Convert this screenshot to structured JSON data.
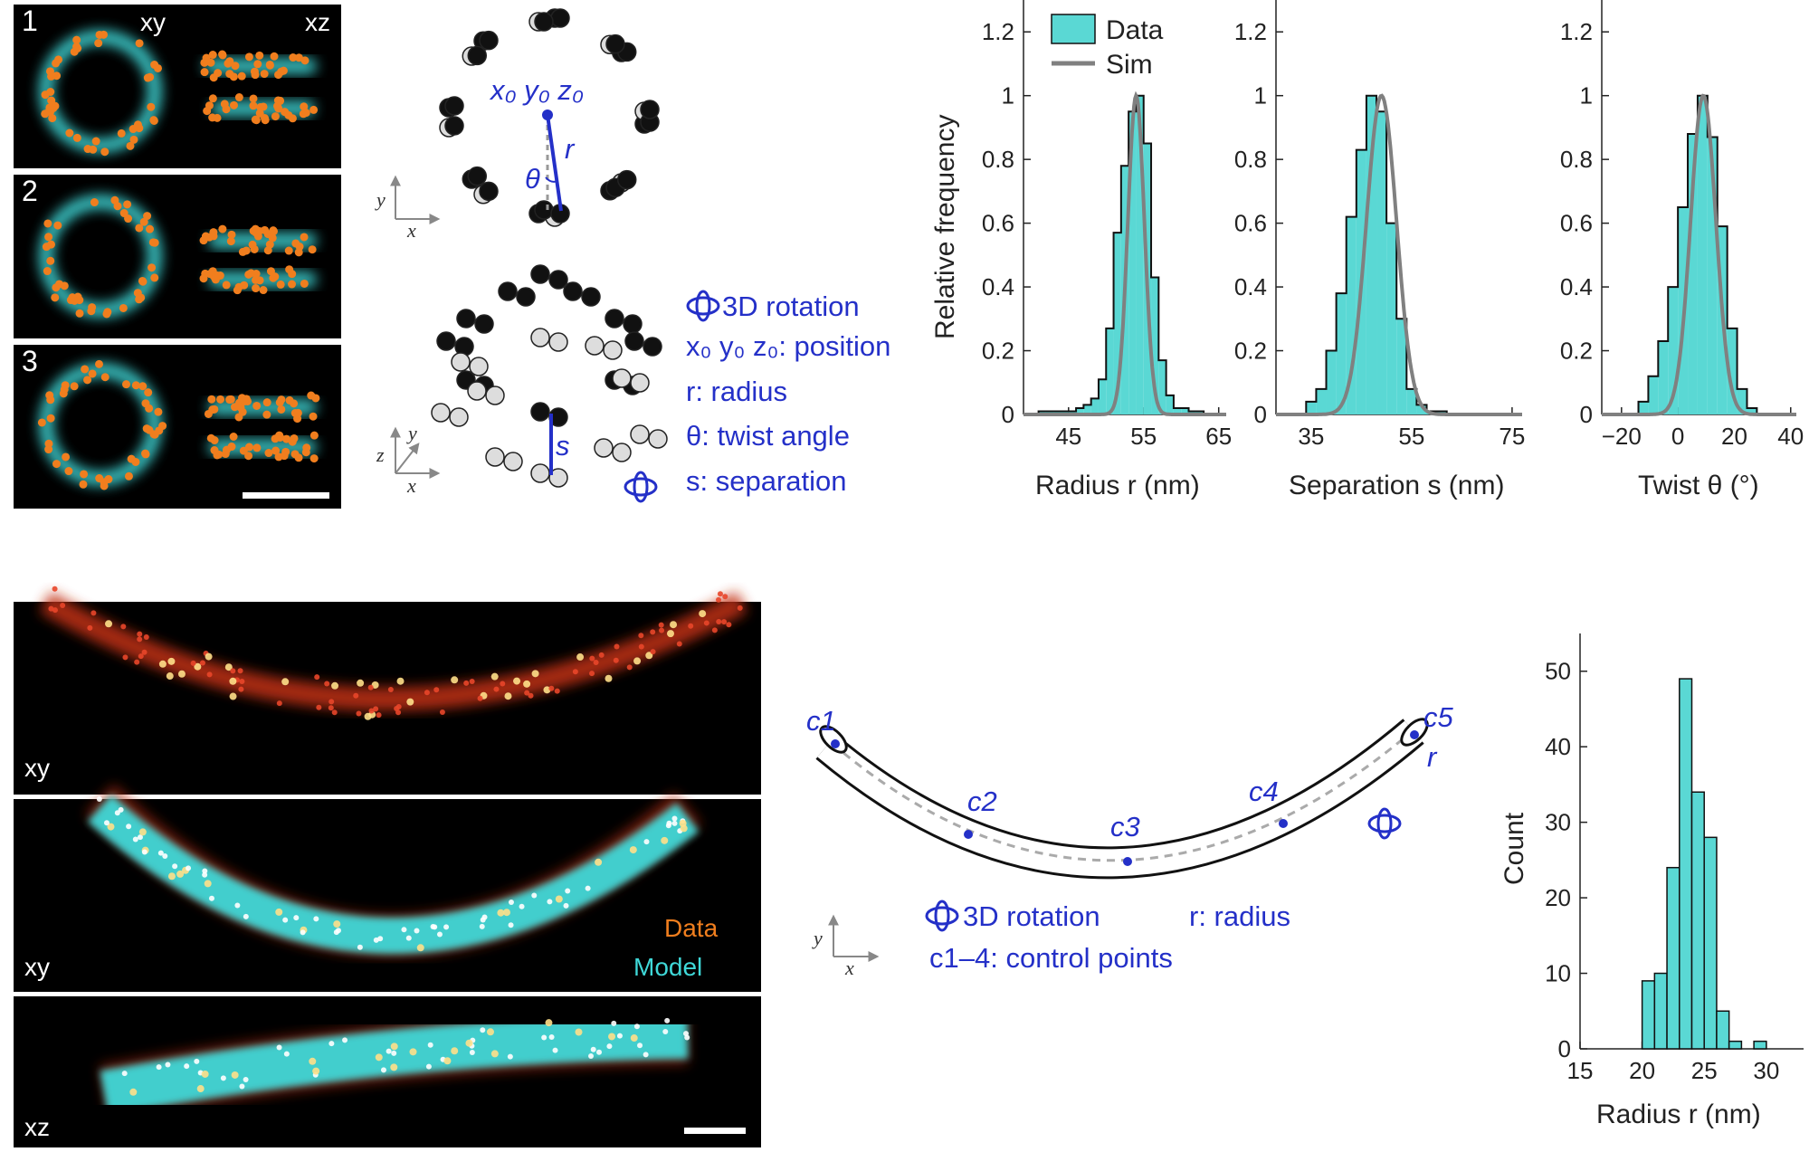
{
  "figure": {
    "panel_a": {
      "panels": [
        {
          "label": "1"
        },
        {
          "label": "2"
        },
        {
          "label": "3"
        }
      ],
      "view_xy": "xy",
      "view_xz": "xz"
    },
    "npc_model": {
      "axes_top": {
        "y": "y",
        "x": "x"
      },
      "axes_bottom": {
        "z": "z",
        "y": "y",
        "x": "x"
      },
      "center_label": "x₀ y₀ z₀",
      "r_label": "r",
      "theta_label": "θ",
      "s_label": "s",
      "legend": [
        "3D rotation",
        "x₀ y₀ z₀: position",
        "r: radius",
        "θ: twist angle",
        "s: separation"
      ]
    },
    "tube_model": {
      "control_labels": [
        "c1",
        "c2",
        "c3",
        "c4",
        "c5"
      ],
      "r_label": "r",
      "axes": {
        "y": "y",
        "x": "x"
      },
      "legend": [
        "3D rotation",
        "r: radius",
        "c1–4: control points"
      ]
    },
    "image_panel_b": {
      "labels": [
        "xy",
        "xy",
        "xz"
      ],
      "legend_data": "Data",
      "legend_model": "Model"
    },
    "colors": {
      "data_fill": "#5ad8d4",
      "sim_line": "#808080",
      "annotation_blue": "#2430c8",
      "localization_orange": "#f07e1e"
    }
  },
  "chart_data": [
    {
      "type": "bar",
      "title": "",
      "xlabel": "Radius r (nm)",
      "ylabel": "Relative frequency",
      "bin_start": 41,
      "bin_width": 1,
      "values": [
        0.01,
        0.01,
        0.01,
        0.01,
        0.01,
        0.02,
        0.03,
        0.05,
        0.11,
        0.27,
        0.57,
        0.78,
        0.95,
        1.0,
        0.85,
        0.43,
        0.17,
        0.06,
        0.02,
        0.02,
        0.01,
        0.01
      ],
      "series": [
        {
          "name": "Data"
        },
        {
          "name": "Sim",
          "type": "gaussian",
          "mean": 54,
          "sd": 1.1
        }
      ],
      "xlim": [
        39,
        66
      ],
      "ylim": [
        0,
        1.3
      ],
      "xticks": [
        45,
        55,
        65
      ],
      "yticks": [
        0,
        0.2,
        0.4,
        0.6,
        0.8,
        1,
        1.2
      ],
      "legend": [
        "Data",
        "Sim"
      ]
    },
    {
      "type": "bar",
      "title": "",
      "xlabel": "Separation s (nm)",
      "ylabel": "",
      "bin_start": 34,
      "bin_width": 2,
      "values": [
        0.04,
        0.08,
        0.2,
        0.38,
        0.62,
        0.83,
        1.0,
        0.95,
        0.6,
        0.3,
        0.08,
        0.03,
        0.01,
        0.01
      ],
      "series": [
        {
          "name": "Data"
        },
        {
          "name": "Sim",
          "type": "gaussian",
          "mean": 49,
          "sd": 3.0
        }
      ],
      "xlim": [
        28,
        77
      ],
      "ylim": [
        0,
        1.3
      ],
      "xticks": [
        35,
        55,
        75
      ],
      "yticks": [
        0,
        0.2,
        0.4,
        0.6,
        0.8,
        1,
        1.2
      ]
    },
    {
      "type": "bar",
      "title": "",
      "xlabel": "Twist θ (°)",
      "ylabel": "",
      "bin_start": -14,
      "bin_width": 3.5,
      "values": [
        0.04,
        0.12,
        0.23,
        0.4,
        0.65,
        0.88,
        1.0,
        0.87,
        0.59,
        0.27,
        0.08,
        0.02
      ],
      "series": [
        {
          "name": "Data"
        },
        {
          "name": "Sim",
          "type": "gaussian",
          "mean": 9,
          "sd": 4.5
        }
      ],
      "xlim": [
        -27,
        42
      ],
      "ylim": [
        0,
        1.3
      ],
      "xticks": [
        -20,
        0,
        20,
        40
      ],
      "yticks": [
        0,
        0.2,
        0.4,
        0.6,
        0.8,
        1,
        1.2
      ]
    },
    {
      "type": "bar",
      "title": "",
      "xlabel": "Radius r (nm)",
      "ylabel": "Count",
      "bin_start": 20,
      "bin_width": 1,
      "values": [
        9,
        10,
        24,
        49,
        34,
        28,
        5,
        1,
        0,
        1
      ],
      "xlim": [
        15,
        33
      ],
      "ylim": [
        0,
        55
      ],
      "xticks": [
        15,
        20,
        25,
        30
      ],
      "yticks": [
        0,
        10,
        20,
        30,
        40,
        50
      ]
    }
  ]
}
